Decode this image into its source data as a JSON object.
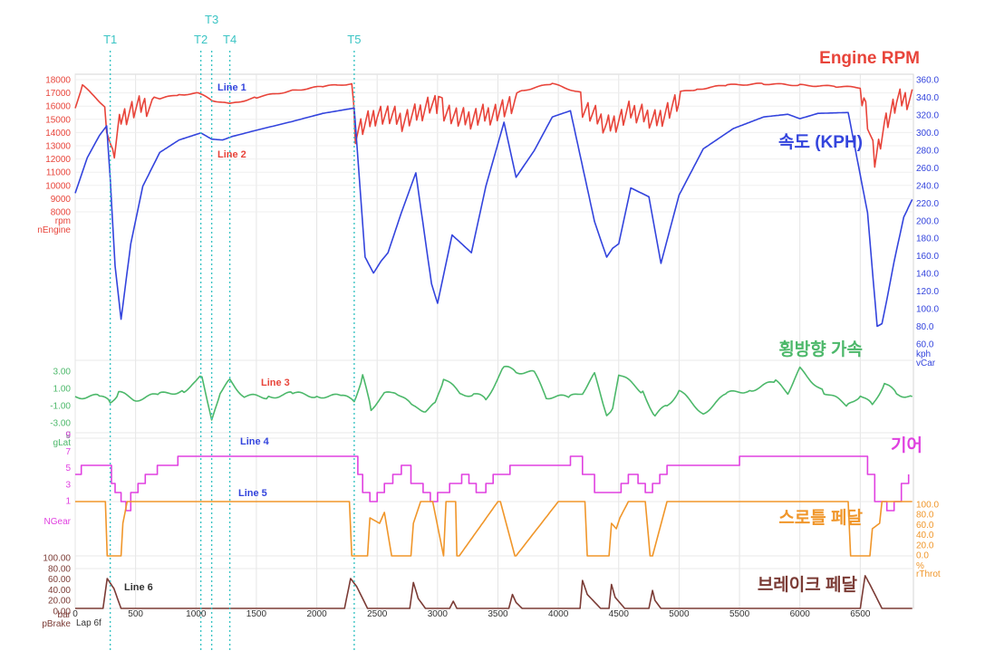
{
  "colors": {
    "rpm": "#e8443a",
    "speed": "#3344dd",
    "lat": "#4cb86a",
    "gear": "#e040e0",
    "throttle": "#f0962a",
    "brake": "#7b3b35",
    "turn": "#3ac4c4",
    "grid": "#e4e4e4"
  },
  "chart_data": {
    "type": "line",
    "x_tick_labels": [
      "0",
      "500",
      "1000",
      "1500",
      "2000",
      "2500",
      "3000",
      "3500",
      "4000",
      "4500",
      "5000",
      "5500",
      "6000",
      "6500"
    ],
    "x_range": [
      0,
      6940
    ],
    "x_label": "Lap 6f",
    "turn_markers": [
      {
        "name": "T1",
        "x": 290
      },
      {
        "name": "T2",
        "x": 1040
      },
      {
        "name": "T3",
        "x": 1130
      },
      {
        "name": "T4",
        "x": 1280
      },
      {
        "name": "T5",
        "x": 2310
      }
    ],
    "panels": [
      {
        "id": "rpm",
        "title": "Engine RPM",
        "axis_side": "left",
        "unit": "rpm",
        "channel": "nEngine",
        "ylim": [
          8000,
          18000
        ],
        "tick_labels": [
          "18000",
          "17000",
          "16000",
          "15000",
          "14000",
          "13000",
          "12000",
          "11000",
          "10000",
          "9000",
          "8000"
        ],
        "line_labels": [
          {
            "text": "Line 1",
            "color": "blue"
          },
          {
            "text": "Line 2",
            "color": "red"
          }
        ],
        "series": {
          "x": [
            0,
            60,
            260,
            310,
            380,
            560,
            700,
            860,
            1020,
            1130,
            1280,
            1500,
            1800,
            2050,
            2290,
            2320,
            2500,
            2720,
            2950,
            3200,
            3450,
            3700,
            3950,
            4200,
            4400,
            4600,
            4800,
            4950,
            5150,
            5400,
            5700,
            6000,
            6300,
            6530,
            6620,
            6700,
            6800,
            6930
          ],
          "y": [
            15900,
            17600,
            15900,
            13000,
            16200,
            17100,
            16600,
            16900,
            17000,
            16500,
            16200,
            16700,
            17200,
            17500,
            17700,
            15000,
            16500,
            15900,
            17000,
            15900,
            16400,
            17200,
            17700,
            17000,
            15400,
            16500,
            15900,
            17000,
            17300,
            17600,
            17700,
            17600,
            17500,
            17400,
            13000,
            15500,
            17200,
            17600
          ]
        }
      },
      {
        "id": "speed",
        "title": "속도 (KPH)",
        "axis_side": "right",
        "unit": "kph",
        "channel": "vCar",
        "ylim": [
          60,
          360
        ],
        "tick_labels": [
          "360.0",
          "340.0",
          "320.0",
          "300.0",
          "280.0",
          "260.0",
          "240.0",
          "220.0",
          "200.0",
          "180.0",
          "160.0",
          "140.0",
          "120.0",
          "100.0",
          "80.0",
          "60.0"
        ],
        "series": {
          "x": [
            0,
            100,
            200,
            260,
            290,
            330,
            380,
            460,
            560,
            700,
            860,
            1040,
            1130,
            1220,
            1300,
            1500,
            1800,
            2050,
            2310,
            2400,
            2470,
            2530,
            2590,
            2700,
            2820,
            2950,
            3000,
            3120,
            3280,
            3400,
            3550,
            3650,
            3800,
            3950,
            4100,
            4300,
            4400,
            4450,
            4500,
            4600,
            4750,
            4850,
            5000,
            5200,
            5450,
            5700,
            5900,
            6000,
            6150,
            6400,
            6560,
            6640,
            6680,
            6720,
            6780,
            6860,
            6930
          ],
          "y": [
            232,
            272,
            297,
            308,
            248,
            150,
            90,
            175,
            240,
            278,
            292,
            300,
            293,
            292,
            296,
            303,
            313,
            322,
            328,
            160,
            142,
            155,
            165,
            210,
            255,
            130,
            108,
            185,
            165,
            240,
            312,
            250,
            280,
            318,
            325,
            200,
            160,
            170,
            175,
            238,
            228,
            153,
            230,
            282,
            305,
            318,
            321,
            316,
            322,
            323,
            210,
            82,
            85,
            112,
            155,
            205,
            225
          ]
        }
      },
      {
        "id": "lat",
        "title": "횡방향 가속",
        "axis_side": "left",
        "unit": "g",
        "channel": "gLat",
        "ylim": [
          -4,
          4
        ],
        "tick_labels": [
          "3.00",
          "1.00",
          "-1.00",
          "-3.00"
        ],
        "line_labels": [
          {
            "text": "Line 3",
            "color": "red"
          }
        ],
        "series": {
          "x": [
            0,
            200,
            290,
            360,
            500,
            700,
            900,
            1000,
            1050,
            1130,
            1200,
            1280,
            1400,
            1600,
            1800,
            2000,
            2200,
            2310,
            2380,
            2450,
            2560,
            2650,
            2800,
            2900,
            2980,
            3050,
            3200,
            3300,
            3400,
            3550,
            3650,
            3800,
            3900,
            4100,
            4200,
            4300,
            4400,
            4450,
            4500,
            4700,
            4800,
            4900,
            5000,
            5200,
            5400,
            5600,
            5800,
            5900,
            6000,
            6200,
            6400,
            6500,
            6600,
            6700,
            6800,
            6930
          ],
          "y": [
            0.0,
            0.0,
            -0.6,
            0.4,
            -0.3,
            0.2,
            0.7,
            1.5,
            2.4,
            -2.8,
            0.5,
            1.8,
            0.0,
            0.0,
            0.3,
            0.1,
            0.0,
            -0.4,
            2.2,
            -1.3,
            0.2,
            0.6,
            -1.2,
            -1.5,
            -0.8,
            2.0,
            0.2,
            0.3,
            -0.3,
            3.2,
            2.8,
            2.6,
            0.0,
            -0.1,
            0.5,
            2.4,
            -1.9,
            -1.5,
            2.5,
            0.5,
            -2.1,
            -1.0,
            0.6,
            -1.8,
            0.3,
            0.8,
            1.6,
            0.5,
            3.0,
            0.5,
            -1.0,
            0.2,
            -1.0,
            1.5,
            0.3,
            0.0
          ]
        }
      },
      {
        "id": "gear",
        "title": "기어",
        "axis_side": "left",
        "unit": "",
        "channel": "NGear",
        "ylim": [
          0,
          9
        ],
        "tick_labels": [
          "9",
          "7",
          "5",
          "3",
          "1"
        ],
        "line_labels": [
          {
            "text": "Line 4",
            "color": "blue"
          },
          {
            "text": "Line 5",
            "color": "blue"
          }
        ],
        "series": {
          "x": [
            0,
            50,
            270,
            300,
            330,
            380,
            420,
            460,
            520,
            580,
            680,
            800,
            850,
            2310,
            2340,
            2380,
            2440,
            2500,
            2560,
            2630,
            2700,
            2780,
            2880,
            2940,
            3000,
            3100,
            3200,
            3260,
            3320,
            3400,
            3460,
            3600,
            3700,
            4100,
            4200,
            4300,
            4480,
            4520,
            4580,
            4660,
            4720,
            4780,
            4840,
            4900,
            5000,
            5100,
            5300,
            5500,
            6500,
            6560,
            6620,
            6720,
            6780,
            6840,
            6900
          ],
          "y": [
            5,
            6,
            6,
            4,
            3,
            2,
            1,
            3,
            4,
            5,
            6,
            6,
            7,
            7,
            5,
            3,
            2,
            3,
            4,
            5,
            6,
            4,
            3,
            2,
            3,
            4,
            5,
            4,
            3,
            4,
            5,
            6,
            6,
            7,
            5,
            3,
            3,
            4,
            5,
            4,
            3,
            4,
            5,
            6,
            6,
            6,
            6,
            7,
            7,
            5,
            2,
            1,
            2,
            4,
            5
          ]
        }
      },
      {
        "id": "throttle",
        "title": "스로틀 페달",
        "axis_side": "right",
        "unit": "%",
        "channel": "rThrot",
        "ylim": [
          0,
          100
        ],
        "tick_labels": [
          "100.0",
          "80.0",
          "60.0",
          "40.0",
          "20.0",
          "0.0"
        ],
        "series": {
          "x": [
            0,
            250,
            265,
            380,
            395,
            430,
            2270,
            2290,
            2420,
            2440,
            2520,
            2560,
            2620,
            2780,
            2800,
            2860,
            2960,
            3050,
            3070,
            3150,
            3160,
            3180,
            3500,
            3520,
            3640,
            3650,
            4000,
            4220,
            4240,
            4420,
            4440,
            4480,
            4510,
            4580,
            4720,
            4760,
            4780,
            4900,
            4920,
            6400,
            6420,
            6580,
            6600,
            6660,
            6680,
            6930
          ],
          "y": [
            100,
            100,
            0,
            0,
            60,
            100,
            100,
            0,
            0,
            70,
            60,
            80,
            0,
            0,
            60,
            100,
            100,
            0,
            100,
            100,
            0,
            0,
            100,
            100,
            0,
            0,
            100,
            100,
            0,
            0,
            60,
            50,
            70,
            100,
            100,
            0,
            0,
            100,
            100,
            100,
            0,
            0,
            50,
            60,
            100,
            100
          ]
        }
      },
      {
        "id": "brake",
        "title": "브레이크 페달",
        "axis_side": "left",
        "unit": "bar",
        "channel": "pBrake",
        "ylim": [
          0,
          100
        ],
        "tick_labels": [
          "100.00",
          "80.00",
          "60.00",
          "40.00",
          "20.00",
          "0.00"
        ],
        "line_labels": [
          {
            "text": "Line 6",
            "color": "black"
          }
        ],
        "series": {
          "x": [
            0,
            230,
            265,
            320,
            380,
            2230,
            2280,
            2330,
            2420,
            2770,
            2800,
            2840,
            2900,
            3100,
            3130,
            3160,
            3590,
            3620,
            3650,
            3700,
            4180,
            4200,
            4240,
            4350,
            4420,
            4440,
            4470,
            4550,
            4750,
            4780,
            4800,
            4850,
            6500,
            6540,
            6580,
            6680,
            6930
          ],
          "y": [
            0,
            0,
            75,
            50,
            0,
            0,
            75,
            55,
            0,
            0,
            65,
            25,
            0,
            0,
            18,
            0,
            0,
            35,
            15,
            0,
            0,
            70,
            35,
            0,
            0,
            60,
            28,
            0,
            0,
            45,
            20,
            0,
            0,
            82,
            60,
            0,
            0
          ]
        }
      }
    ]
  }
}
